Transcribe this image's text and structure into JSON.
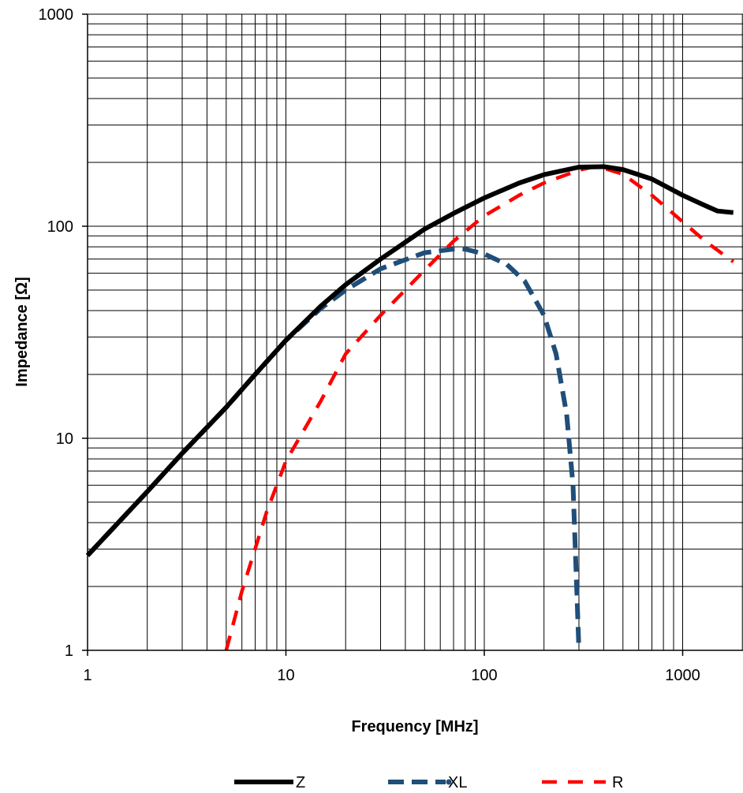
{
  "chart_data": {
    "type": "line",
    "xlabel": "Frequency [MHz]",
    "ylabel": "Impedance [Ω]",
    "x_scale": "log",
    "y_scale": "log",
    "xlim": [
      1,
      1800
    ],
    "ylim": [
      1,
      1000
    ],
    "grid": true,
    "legend_position": "bottom",
    "x_ticks": [
      "1",
      "10",
      "100",
      "1000"
    ],
    "y_ticks": [
      "1",
      "10",
      "100",
      "1000"
    ],
    "series": [
      {
        "name": "Z",
        "color": "#000000",
        "style": "solid",
        "points": [
          [
            1,
            2.8
          ],
          [
            1.5,
            4.2
          ],
          [
            2,
            5.6
          ],
          [
            3,
            8.5
          ],
          [
            5,
            14
          ],
          [
            7,
            20
          ],
          [
            10,
            29
          ],
          [
            15,
            42
          ],
          [
            20,
            53
          ],
          [
            30,
            70
          ],
          [
            50,
            97
          ],
          [
            70,
            115
          ],
          [
            100,
            136
          ],
          [
            150,
            160
          ],
          [
            200,
            175
          ],
          [
            300,
            190
          ],
          [
            400,
            191
          ],
          [
            500,
            185
          ],
          [
            700,
            167
          ],
          [
            1000,
            140
          ],
          [
            1300,
            125
          ],
          [
            1500,
            118
          ],
          [
            1800,
            116
          ]
        ]
      },
      {
        "name": "XL",
        "color": "#1f4e79",
        "style": "dashed",
        "points": [
          [
            1,
            2.8
          ],
          [
            1.5,
            4.2
          ],
          [
            2,
            5.6
          ],
          [
            3,
            8.5
          ],
          [
            5,
            14
          ],
          [
            7,
            20
          ],
          [
            10,
            29
          ],
          [
            15,
            41
          ],
          [
            20,
            50
          ],
          [
            30,
            63
          ],
          [
            50,
            75
          ],
          [
            70,
            78
          ],
          [
            80,
            78
          ],
          [
            100,
            74
          ],
          [
            130,
            66
          ],
          [
            160,
            55
          ],
          [
            200,
            38
          ],
          [
            230,
            25
          ],
          [
            260,
            13
          ],
          [
            280,
            6
          ],
          [
            300,
            1
          ]
        ]
      },
      {
        "name": "R",
        "color": "#ff0000",
        "style": "dashed",
        "points": [
          [
            5,
            1
          ],
          [
            6,
            1.9
          ],
          [
            8,
            4.5
          ],
          [
            10,
            7.8
          ],
          [
            15,
            15
          ],
          [
            20,
            25
          ],
          [
            30,
            38
          ],
          [
            50,
            62
          ],
          [
            70,
            85
          ],
          [
            100,
            112
          ],
          [
            150,
            140
          ],
          [
            200,
            160
          ],
          [
            300,
            184
          ],
          [
            350,
            190
          ],
          [
            400,
            188
          ],
          [
            500,
            176
          ],
          [
            700,
            140
          ],
          [
            1000,
            105
          ],
          [
            1300,
            85
          ],
          [
            1800,
            68
          ]
        ]
      }
    ]
  }
}
